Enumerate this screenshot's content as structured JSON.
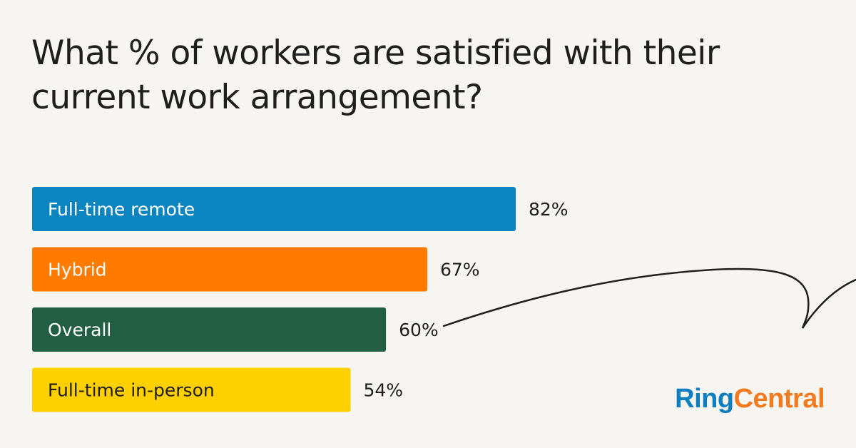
{
  "title": "What % of workers are satisfied with their current work arrangement?",
  "brand": {
    "part1": "Ring",
    "part2": "Central"
  },
  "chart_data": {
    "type": "bar",
    "orientation": "horizontal",
    "title": "What % of workers are satisfied with their current work arrangement?",
    "categories": [
      "Full-time remote",
      "Hybrid",
      "Overall",
      "Full-time in-person"
    ],
    "values": [
      82,
      67,
      60,
      54
    ],
    "value_labels": [
      "82%",
      "67%",
      "60%",
      "54%"
    ],
    "colors": [
      "#0b84bf",
      "#ff7b00",
      "#215e43",
      "#ffd000"
    ],
    "label_colors": [
      "#ffffff",
      "#ffffff",
      "#ffffff",
      "#1e1e1e"
    ],
    "xlim": [
      0,
      100
    ],
    "grid": false,
    "legend": "none"
  }
}
